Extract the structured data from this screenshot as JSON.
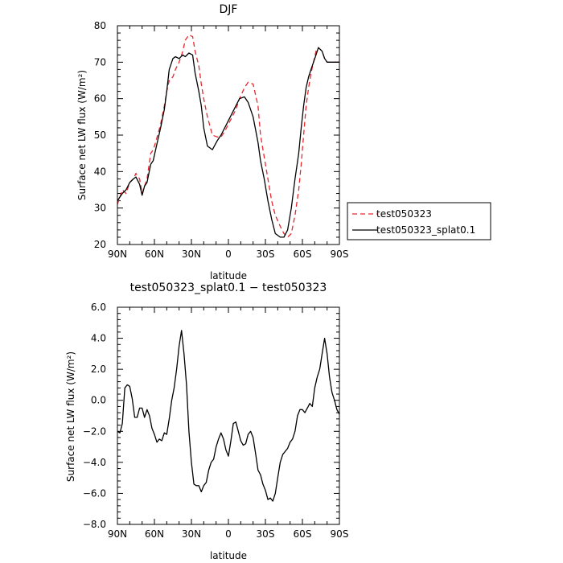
{
  "chart_data": [
    {
      "type": "line",
      "title": "DJF",
      "xlabel": "latitude",
      "ylabel": "Surface net LW flux (W/m²)",
      "xlim": [
        90,
        -90
      ],
      "ylim": [
        20,
        80
      ],
      "xticks": [
        90,
        60,
        30,
        0,
        -30,
        -60,
        -90
      ],
      "xtick_labels": [
        "90N",
        "60N",
        "30N",
        "0",
        "30S",
        "60S",
        "90S"
      ],
      "yticks": [
        20,
        30,
        40,
        50,
        60,
        70,
        80
      ],
      "ytick_labels": [
        "20",
        "30",
        "40",
        "50",
        "60",
        "70",
        "80"
      ],
      "legend_position": "right",
      "series": [
        {
          "name": "test050323",
          "color": "#e8262c",
          "dash": "dashed",
          "x": [
            90,
            86,
            83,
            80,
            77,
            75,
            72,
            70,
            68,
            66,
            63,
            61,
            59,
            55,
            52,
            50,
            48,
            45,
            43,
            40,
            37,
            35,
            32,
            29,
            27,
            24,
            22,
            20,
            17,
            13,
            9,
            6,
            3,
            0,
            -3,
            -6,
            -9,
            -13,
            -16,
            -20,
            -24,
            -26,
            -29,
            -32,
            -35,
            -38,
            -42,
            -45,
            -48,
            -51,
            -54,
            -57,
            -59,
            -61,
            -63,
            -65,
            -67,
            -69,
            -71,
            -73,
            -76,
            -78,
            -80,
            -82,
            -84,
            -86,
            -88,
            -90
          ],
          "y": [
            31,
            35,
            34,
            37,
            38,
            39.5,
            38,
            34,
            36,
            38,
            45,
            46,
            48,
            53,
            58,
            62,
            65,
            66,
            68,
            70,
            73,
            76,
            77.5,
            77,
            73,
            69,
            64,
            60,
            55,
            50,
            49.5,
            49.5,
            51,
            53,
            55,
            57,
            60,
            63,
            64.5,
            64,
            58,
            50,
            44,
            38,
            32,
            28,
            25,
            23,
            22,
            23,
            28,
            35,
            42,
            50,
            58,
            63,
            67,
            70,
            73,
            74,
            73,
            71,
            70,
            70,
            70,
            70,
            70,
            70
          ]
        },
        {
          "name": "test050323_splat0.1",
          "color": "#000000",
          "dash": "solid",
          "x": [
            90,
            86,
            83,
            80,
            77,
            75,
            72,
            70,
            68,
            66,
            63,
            61,
            59,
            55,
            52,
            50,
            48,
            45,
            43,
            40,
            37,
            35,
            32,
            29,
            27,
            24,
            22,
            20,
            17,
            13,
            9,
            6,
            3,
            0,
            -3,
            -6,
            -9,
            -13,
            -16,
            -20,
            -24,
            -26,
            -29,
            -32,
            -35,
            -38,
            -42,
            -45,
            -48,
            -51,
            -54,
            -57,
            -59,
            -61,
            -63,
            -65,
            -67,
            -69,
            -71,
            -73,
            -76,
            -78,
            -80,
            -82,
            -84,
            -86,
            -88,
            -90
          ],
          "y": [
            32,
            34,
            35,
            37,
            38,
            38.5,
            36.5,
            33.5,
            36,
            37,
            42,
            43,
            46,
            52,
            57,
            62,
            68,
            71,
            71.5,
            71,
            72,
            71.5,
            72.5,
            72,
            67,
            62,
            58,
            52,
            47,
            46,
            48.5,
            50,
            52,
            54,
            56,
            58,
            60,
            60.5,
            59,
            55,
            48,
            43,
            38,
            32,
            27,
            23,
            22,
            22,
            24,
            30,
            38,
            45,
            52,
            58,
            63,
            66,
            68,
            70,
            72,
            74,
            73,
            71,
            70,
            70,
            70,
            70,
            70,
            70
          ]
        }
      ]
    },
    {
      "type": "line",
      "title": "test050323_splat0.1 − test050323",
      "xlabel": "latitude",
      "ylabel": "Surface net LW flux (W/m²)",
      "xlim": [
        90,
        -90
      ],
      "ylim": [
        -8,
        6
      ],
      "xticks": [
        90,
        60,
        30,
        0,
        -30,
        -60,
        -90
      ],
      "xtick_labels": [
        "90N",
        "60N",
        "30N",
        "0",
        "30S",
        "60S",
        "90S"
      ],
      "yticks": [
        -8,
        -6,
        -4,
        -2,
        0,
        2,
        4,
        6
      ],
      "ytick_labels": [
        "−8.0",
        "−6.0",
        "−4.0",
        "−2.0",
        "0.0",
        "2.0",
        "4.0",
        "6.0"
      ],
      "series": [
        {
          "name": "",
          "color": "#000000",
          "dash": "solid",
          "x": [
            90,
            88,
            86,
            84,
            82,
            80,
            78,
            76,
            74,
            72,
            70,
            68,
            66,
            64,
            62,
            60,
            58,
            56,
            54,
            52,
            50,
            48,
            46,
            44,
            42,
            40,
            38,
            36,
            34,
            32,
            30,
            28,
            26,
            24,
            22,
            20,
            18,
            16,
            14,
            12,
            10,
            8,
            6,
            4,
            2,
            0,
            -2,
            -4,
            -6,
            -8,
            -10,
            -12,
            -14,
            -16,
            -18,
            -20,
            -22,
            -24,
            -26,
            -28,
            -30,
            -32,
            -34,
            -36,
            -38,
            -40,
            -42,
            -44,
            -46,
            -48,
            -50,
            -52,
            -54,
            -56,
            -58,
            -60,
            -62,
            -64,
            -66,
            -68,
            -70,
            -72,
            -74,
            -76,
            -78,
            -80,
            -82,
            -84,
            -86,
            -88,
            -90
          ],
          "y": [
            -2.0,
            -2.1,
            -1.5,
            0.8,
            1.0,
            0.9,
            0.1,
            -1.1,
            -1.1,
            -0.5,
            -0.5,
            -1.1,
            -0.6,
            -1.0,
            -1.8,
            -2.2,
            -2.7,
            -2.5,
            -2.6,
            -2.1,
            -2.2,
            -1.2,
            0.0,
            0.8,
            2.0,
            3.5,
            4.5,
            3.0,
            1.0,
            -2.0,
            -4.0,
            -5.4,
            -5.5,
            -5.5,
            -5.9,
            -5.5,
            -5.3,
            -4.5,
            -4.0,
            -3.8,
            -3.0,
            -2.5,
            -2.1,
            -2.5,
            -3.2,
            -3.6,
            -2.6,
            -1.5,
            -1.4,
            -2.0,
            -2.6,
            -2.9,
            -2.8,
            -2.2,
            -2.0,
            -2.4,
            -3.4,
            -4.5,
            -4.8,
            -5.4,
            -5.8,
            -6.4,
            -6.3,
            -6.5,
            -6.0,
            -5.0,
            -4.0,
            -3.5,
            -3.3,
            -3.1,
            -2.7,
            -2.5,
            -2.0,
            -1.0,
            -0.6,
            -0.6,
            -0.8,
            -0.5,
            -0.2,
            -0.4,
            0.8,
            1.5,
            2.0,
            3.0,
            4.0,
            3.0,
            1.5,
            0.5,
            0.0,
            -0.6,
            -0.9
          ]
        }
      ]
    }
  ]
}
